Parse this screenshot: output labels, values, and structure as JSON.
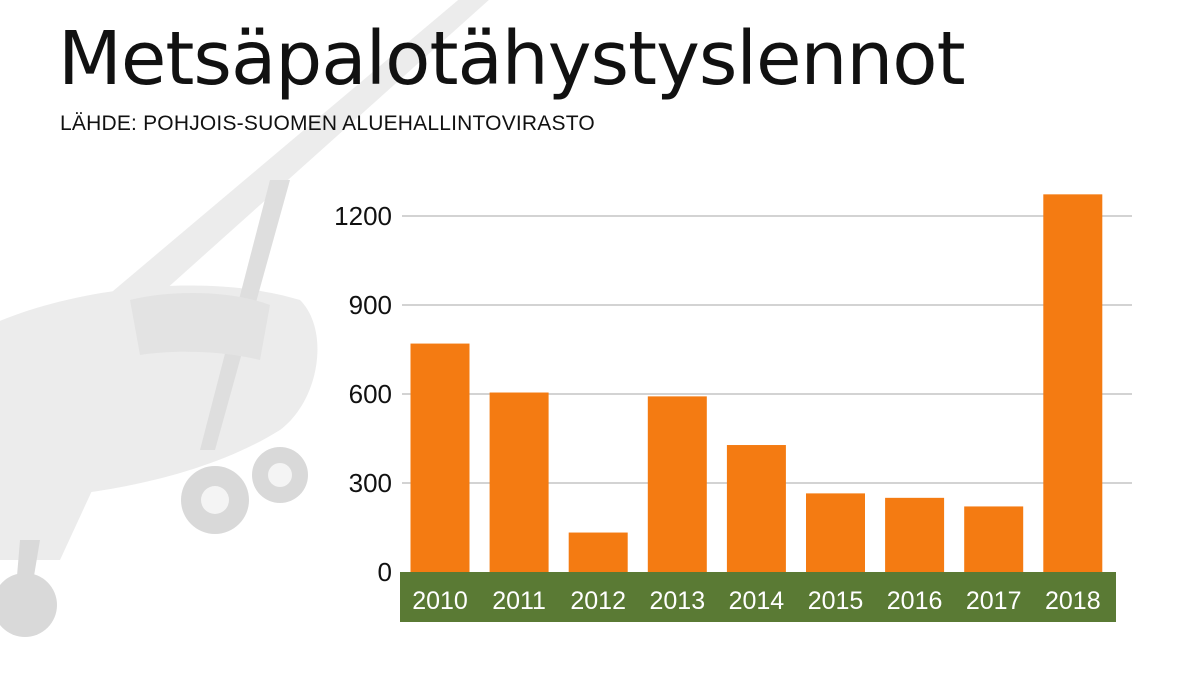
{
  "title": "Metsäpalotähystyslennot",
  "subtitle": "LÄHDE: POHJOIS-SUOMEN ALUEHALLINTOVIRASTO",
  "chart_data": {
    "type": "bar",
    "categories": [
      "2010",
      "2011",
      "2012",
      "2013",
      "2014",
      "2015",
      "2016",
      "2017",
      "2018"
    ],
    "values": [
      770,
      605,
      133,
      592,
      428,
      265,
      250,
      221,
      1273
    ],
    "title": "Metsäpalotähystyslennot",
    "subtitle": "LÄHDE: POHJOIS-SUOMEN ALUEHALLINTOVIRASTO",
    "ylim": [
      0,
      1300
    ],
    "yticks": [
      0,
      300,
      600,
      900,
      1200
    ],
    "grid": true,
    "colors": {
      "bar": "#f47b12",
      "category_band": "#5a7a34",
      "gridline": "#d3d3d3",
      "background_illustration": "#e9e9e9"
    }
  }
}
